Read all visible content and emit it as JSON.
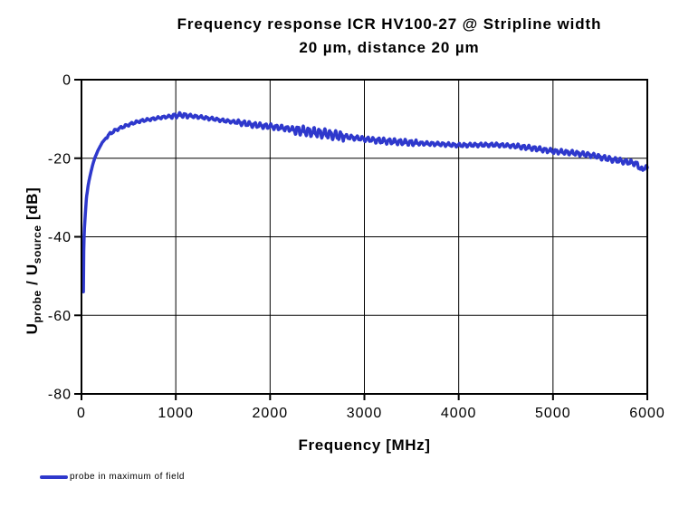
{
  "chart_data": {
    "type": "line",
    "title_line1": "Frequency response ICR HV100-27 @ Stripline width",
    "title_line2": "20 µm, distance 20 µm",
    "xlabel": "Frequency [MHz]",
    "ylabel": {
      "u1": "U",
      "sub1": "probe",
      "sep": " / ",
      "u2": "U",
      "sub2": "source",
      "unit": " [dB]"
    },
    "xlim": [
      0,
      6000
    ],
    "ylim": [
      -80,
      0
    ],
    "x_ticks": [
      0,
      1000,
      2000,
      3000,
      4000,
      5000,
      6000
    ],
    "y_ticks": [
      0,
      -20,
      -40,
      -60,
      -80
    ],
    "grid": true,
    "legend": {
      "position": "bottom-left",
      "entries": [
        {
          "label": "probe in maximum of field",
          "color": "#2E38CC",
          "marker": "line"
        }
      ]
    },
    "series": [
      {
        "name": "probe in maximum of field",
        "color": "#2E38CC",
        "points": [
          [
            20,
            -54
          ],
          [
            22,
            -47
          ],
          [
            25,
            -42
          ],
          [
            30,
            -38.5
          ],
          [
            38,
            -35
          ],
          [
            53,
            -30
          ],
          [
            70,
            -27
          ],
          [
            86,
            -25
          ],
          [
            115,
            -22
          ],
          [
            140,
            -20
          ],
          [
            175,
            -18
          ],
          [
            220,
            -16
          ],
          [
            290,
            -14
          ],
          [
            350,
            -13
          ],
          [
            420,
            -12.2
          ],
          [
            540,
            -11.1
          ],
          [
            630,
            -10.5
          ],
          [
            750,
            -10
          ],
          [
            850,
            -9.6
          ],
          [
            950,
            -9.3
          ],
          [
            1050,
            -9
          ],
          [
            1150,
            -9.2
          ],
          [
            1250,
            -9.5
          ],
          [
            1400,
            -10
          ],
          [
            1500,
            -10.4
          ],
          [
            1600,
            -10.7
          ],
          [
            1700,
            -11
          ],
          [
            1800,
            -11.4
          ],
          [
            1900,
            -11.7
          ],
          [
            2000,
            -11.9
          ],
          [
            2100,
            -12.2
          ],
          [
            2200,
            -12.5
          ],
          [
            2300,
            -12.9
          ],
          [
            2400,
            -13.2
          ],
          [
            2500,
            -13.5
          ],
          [
            2600,
            -13.8
          ],
          [
            2700,
            -14.2
          ],
          [
            2800,
            -14.5
          ],
          [
            2900,
            -14.8
          ],
          [
            3000,
            -15.1
          ],
          [
            3200,
            -15.6
          ],
          [
            3400,
            -15.9
          ],
          [
            3600,
            -16.2
          ],
          [
            3800,
            -16.4
          ],
          [
            4000,
            -16.7
          ],
          [
            4200,
            -16.6
          ],
          [
            4400,
            -16.6
          ],
          [
            4600,
            -16.9
          ],
          [
            4800,
            -17.5
          ],
          [
            5000,
            -18.2
          ],
          [
            5200,
            -18.6
          ],
          [
            5400,
            -19.2
          ],
          [
            5600,
            -20.2
          ],
          [
            5800,
            -21
          ],
          [
            5880,
            -21.3
          ],
          [
            5950,
            -23.2
          ],
          [
            5975,
            -22
          ],
          [
            6000,
            -22.4
          ]
        ],
        "ripple": {
          "period_mhz": 57,
          "period2_mhz": 23,
          "secondary_ratio": 0.4,
          "zones": [
            [
              260,
              950,
              0.25
            ],
            [
              950,
              1150,
              0.45
            ],
            [
              1150,
              1650,
              0.3
            ],
            [
              1650,
              2250,
              0.5
            ],
            [
              2250,
              2780,
              0.9
            ],
            [
              2780,
              3100,
              0.45
            ],
            [
              3100,
              3550,
              0.55
            ],
            [
              3550,
              4600,
              0.35
            ],
            [
              4600,
              5500,
              0.45
            ],
            [
              5500,
              6000,
              0.5
            ]
          ]
        }
      }
    ]
  },
  "colors": {
    "line": "#2E38CC",
    "axis": "#000000",
    "grid": "#000000",
    "background": "#FFFFFF",
    "text": "#000000"
  }
}
